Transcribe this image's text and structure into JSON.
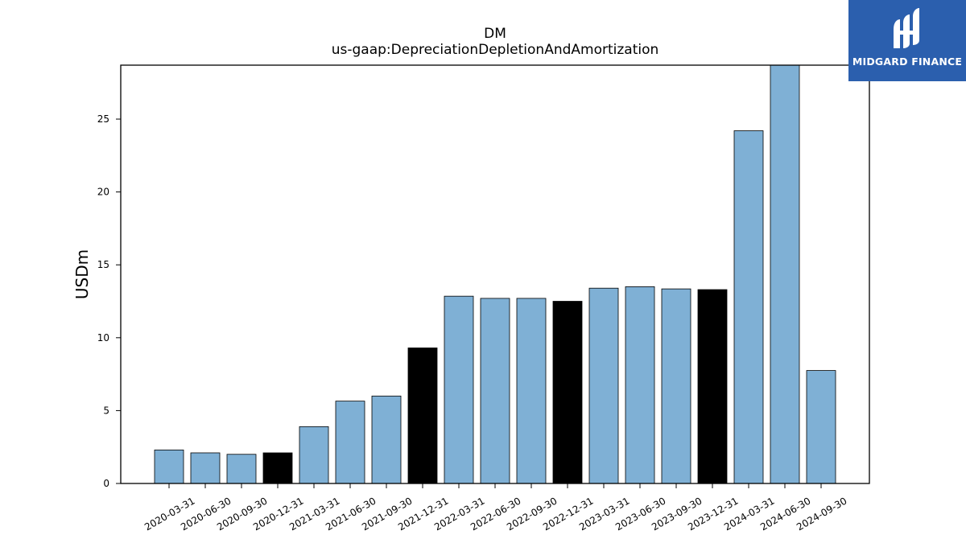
{
  "chart_data": {
    "type": "bar",
    "title": "DM",
    "subtitle": "us-gaap:DepreciationDepletionAndAmortization",
    "xlabel": "",
    "ylabel": "USDm",
    "ylim": [
      0,
      28.7
    ],
    "yticks": [
      0,
      5,
      10,
      15,
      20,
      25
    ],
    "grid": false,
    "categories": [
      "2020-03-31",
      "2020-06-30",
      "2020-09-30",
      "2020-12-31",
      "2021-03-31",
      "2021-06-30",
      "2021-09-30",
      "2021-12-31",
      "2022-03-31",
      "2022-06-30",
      "2022-09-30",
      "2022-12-31",
      "2023-03-31",
      "2023-06-30",
      "2023-09-30",
      "2023-12-31",
      "2024-03-31",
      "2024-06-30",
      "2024-09-30"
    ],
    "values": [
      2.3,
      2.1,
      2.0,
      2.1,
      3.9,
      5.65,
      6.0,
      9.3,
      12.85,
      12.7,
      12.7,
      12.5,
      13.4,
      13.5,
      13.35,
      13.3,
      24.2,
      28.7,
      7.75
    ],
    "bar_colors": [
      "#7fb0d5",
      "#7fb0d5",
      "#7fb0d5",
      "#000000",
      "#7fb0d5",
      "#7fb0d5",
      "#7fb0d5",
      "#000000",
      "#7fb0d5",
      "#7fb0d5",
      "#7fb0d5",
      "#000000",
      "#7fb0d5",
      "#7fb0d5",
      "#7fb0d5",
      "#000000",
      "#7fb0d5",
      "#7fb0d5",
      "#7fb0d5"
    ]
  },
  "logo": {
    "text": "MIDGARD FINANCE",
    "background": "#2b5fae"
  }
}
